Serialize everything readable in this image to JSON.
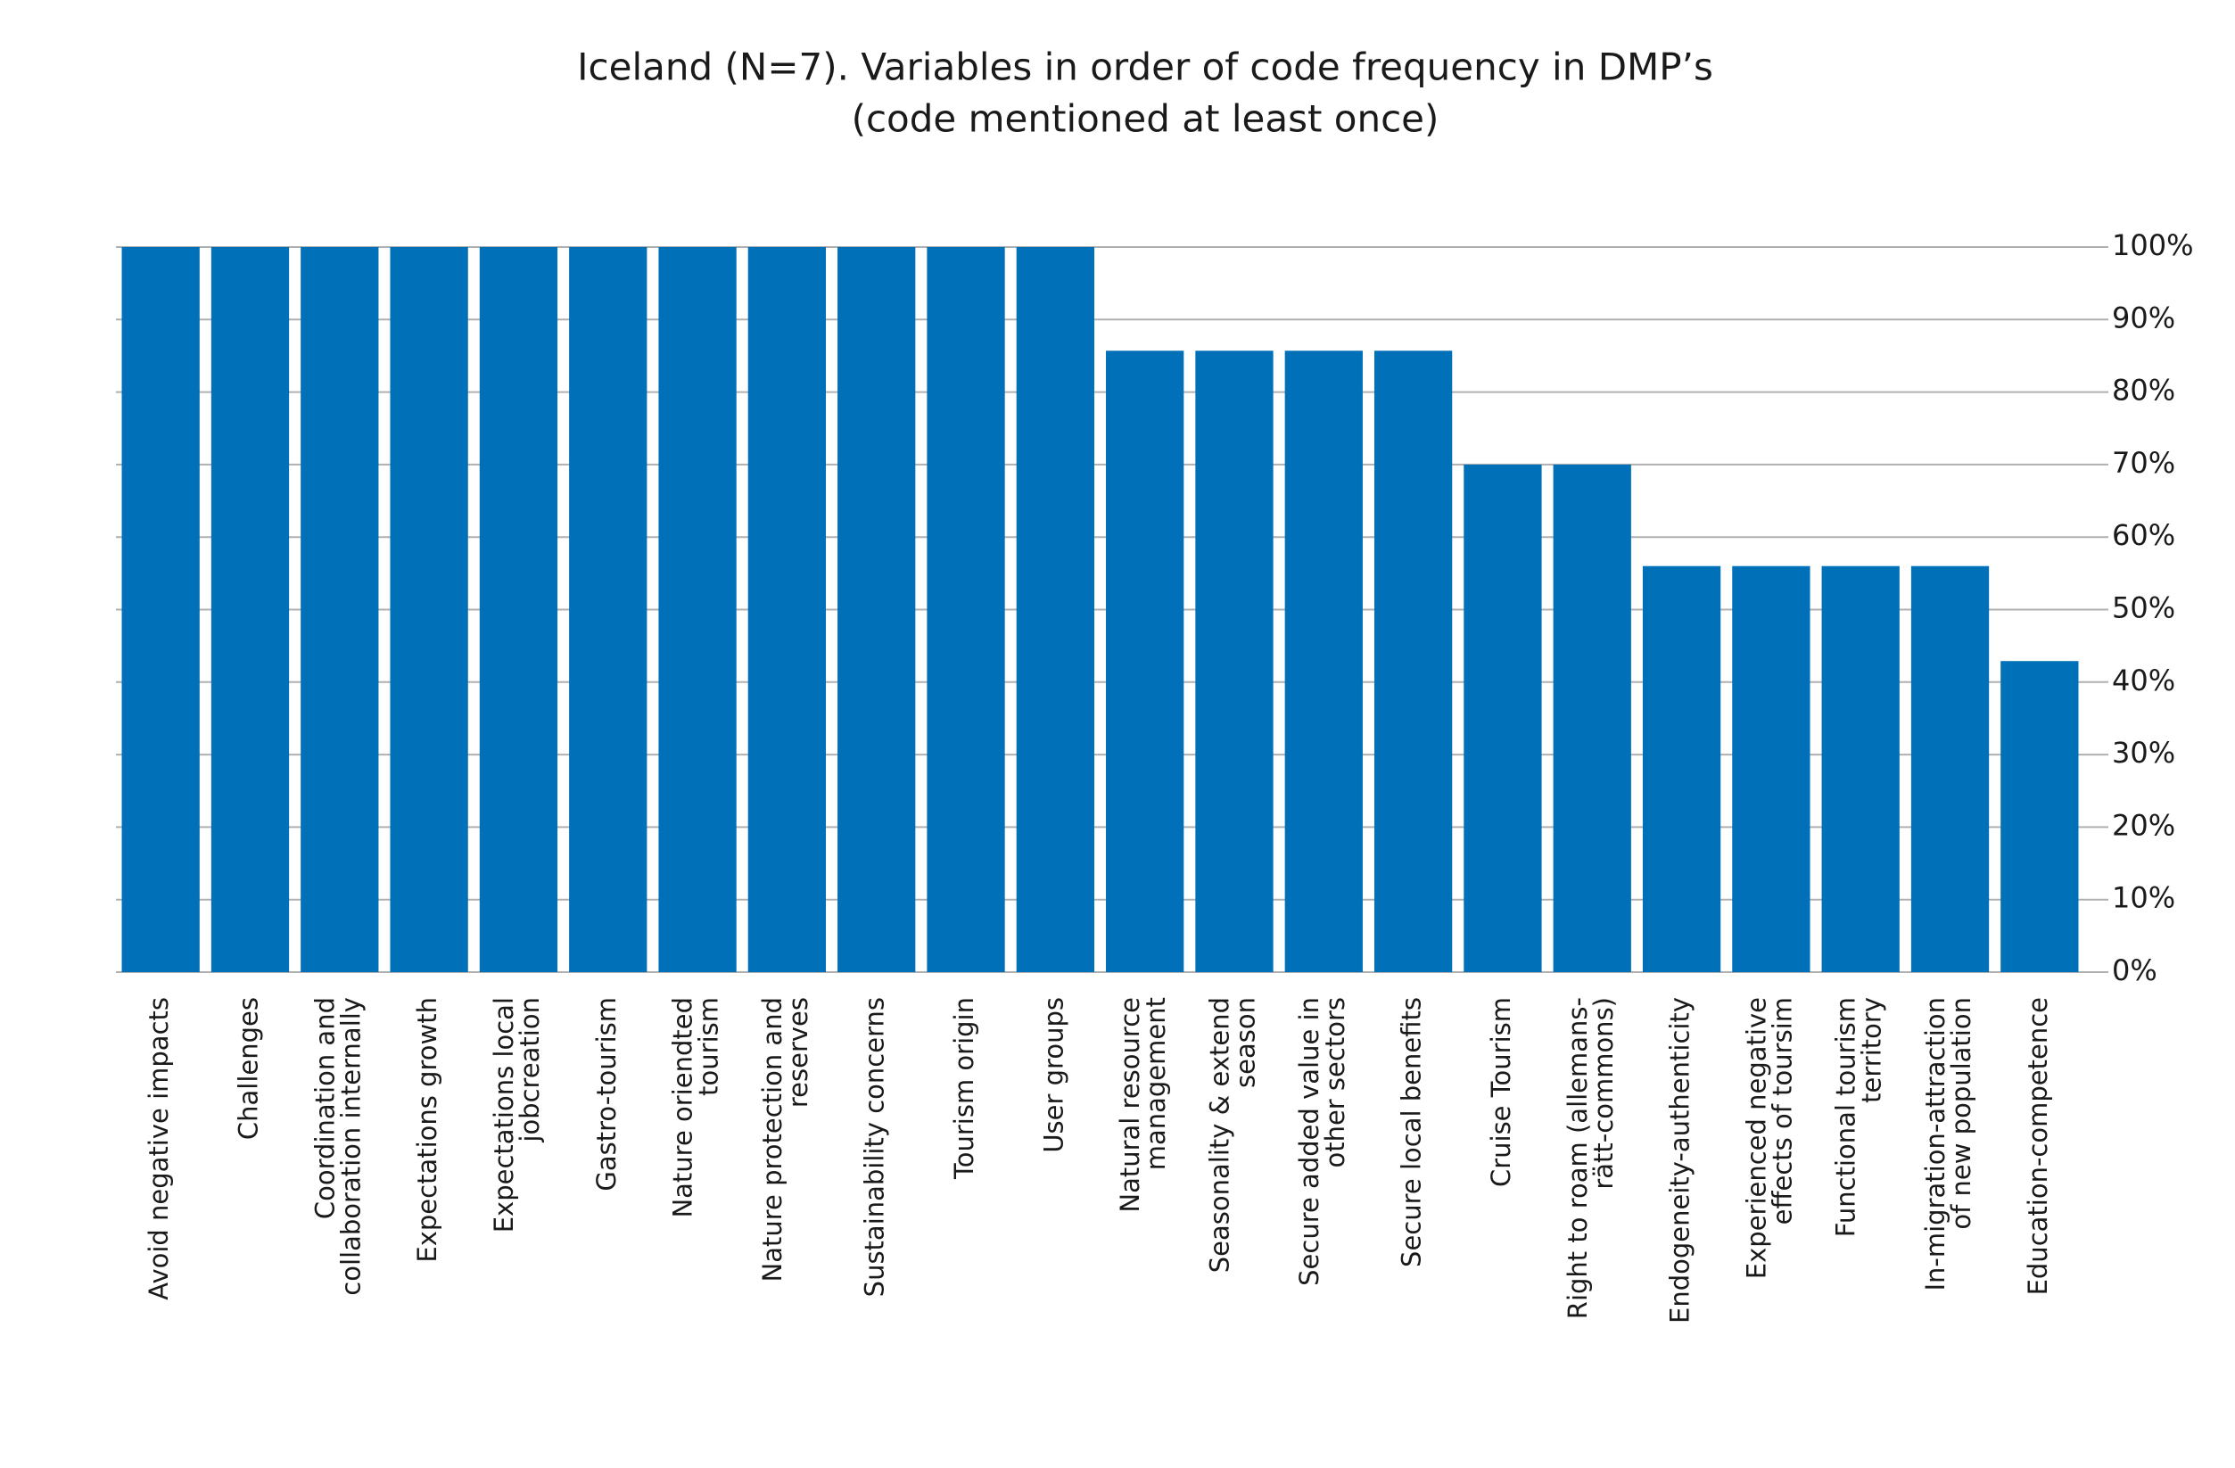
{
  "chart_data": {
    "type": "bar",
    "title": [
      "Iceland (N=7). Variables in order of code frequency in DMP’s",
      "(code mentioned at least once)"
    ],
    "categories": [
      [
        "Avoid negative impacts"
      ],
      [
        "Challenges"
      ],
      [
        "Coordination and",
        "collaboration internally"
      ],
      [
        "Expectations growth"
      ],
      [
        "Expectations local",
        "jobcreation"
      ],
      [
        "Gastro-tourism"
      ],
      [
        "Nature oriendted",
        "tourism"
      ],
      [
        "Nature protection and",
        "reserves"
      ],
      [
        "Sustainability concerns"
      ],
      [
        "Tourism origin"
      ],
      [
        "User groups"
      ],
      [
        "Natural resource",
        "management"
      ],
      [
        "Seasonality & extend",
        "season"
      ],
      [
        "Secure added value in",
        "other sectors"
      ],
      [
        "Secure local benefits"
      ],
      [
        "Cruise Tourism"
      ],
      [
        "Right to roam (allemans-",
        "rätt-commons)"
      ],
      [
        "Endogeneity-authenticity"
      ],
      [
        "Experienced negative",
        "effects of toursim"
      ],
      [
        "Functional tourism",
        "territory"
      ],
      [
        "In-migration-attraction",
        "of new population"
      ],
      [
        "Education-competence"
      ]
    ],
    "values": [
      100,
      100,
      100,
      100,
      100,
      100,
      100,
      100,
      100,
      100,
      100,
      85.7,
      85.7,
      85.7,
      85.7,
      70,
      70,
      56,
      56,
      56,
      56,
      42.9
    ],
    "color": "#0070b8",
    "ylim": [
      0,
      100
    ],
    "yticks": [
      {
        "value": 0,
        "label": "0%"
      },
      {
        "value": 10,
        "label": "10%"
      },
      {
        "value": 20,
        "label": "20%"
      },
      {
        "value": 30,
        "label": "30%"
      },
      {
        "value": 40,
        "label": "40%"
      },
      {
        "value": 50,
        "label": "50%"
      },
      {
        "value": 60,
        "label": "60%"
      },
      {
        "value": 70,
        "label": "70%"
      },
      {
        "value": 80,
        "label": "80%"
      },
      {
        "value": 90,
        "label": "90%"
      },
      {
        "value": 100,
        "label": "100%"
      }
    ],
    "grid": true
  }
}
